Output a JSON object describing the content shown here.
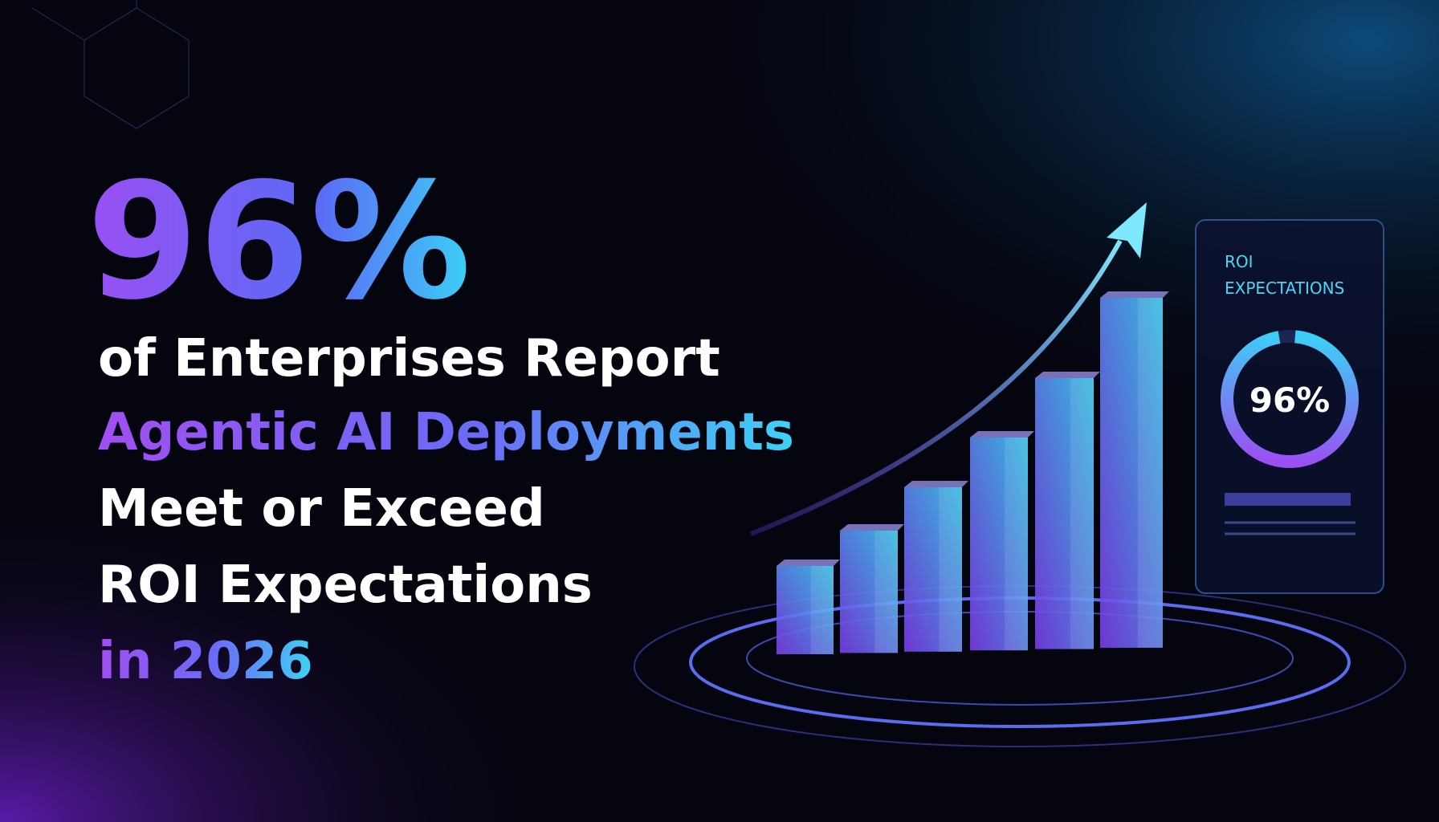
{
  "headline": {
    "stat": "96%",
    "lines": [
      "of Enterprises Report",
      "Agentic AI Deployments",
      "Meet or Exceed",
      "ROI Expectations",
      "in 2026"
    ]
  },
  "card": {
    "title_lines": [
      "ROI",
      "EXPECTATIONS"
    ],
    "value": "96%"
  }
}
